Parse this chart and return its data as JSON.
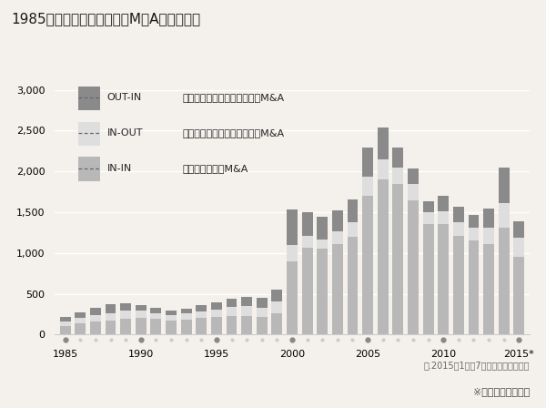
{
  "title": "1985年以降のマーケット別M＆A件数の推移",
  "years": [
    1985,
    1986,
    1987,
    1988,
    1989,
    1990,
    1991,
    1992,
    1993,
    1994,
    1995,
    1996,
    1997,
    1998,
    1999,
    2000,
    2001,
    2002,
    2003,
    2004,
    2005,
    2006,
    2007,
    2008,
    2009,
    2010,
    2011,
    2012,
    2013,
    2014,
    2015
  ],
  "IN_IN": [
    110,
    135,
    165,
    175,
    195,
    200,
    190,
    175,
    185,
    200,
    215,
    225,
    230,
    215,
    265,
    900,
    1060,
    1050,
    1110,
    1200,
    1700,
    1900,
    1850,
    1650,
    1350,
    1360,
    1210,
    1150,
    1110,
    1310,
    950
  ],
  "IN_OUT": [
    45,
    65,
    75,
    90,
    95,
    90,
    75,
    65,
    75,
    85,
    90,
    110,
    120,
    115,
    140,
    200,
    150,
    120,
    150,
    175,
    235,
    250,
    200,
    195,
    150,
    155,
    165,
    155,
    205,
    300,
    240
  ],
  "OUT_IN": [
    65,
    75,
    85,
    105,
    95,
    75,
    60,
    55,
    60,
    80,
    90,
    100,
    110,
    120,
    145,
    430,
    290,
    275,
    265,
    280,
    360,
    390,
    245,
    195,
    135,
    185,
    190,
    160,
    225,
    435,
    195
  ],
  "color_IN_IN": "#b8b8b8",
  "color_IN_OUT": "#dedede",
  "color_OUT_IN": "#8a8a8a",
  "background_color": "#f4f1ec",
  "ylim": [
    0,
    3000
  ],
  "yticks": [
    0,
    500,
    1000,
    1500,
    2000,
    2500,
    3000
  ],
  "note1": "＊.2015年1月〜7月の調査結果です。",
  "note2": "※出所：レコフ調べ",
  "legend_labels": [
    "OUT-IN",
    "IN-OUT",
    "IN-IN"
  ],
  "legend_descs": [
    "外国企業による日本企業へのM&A",
    "日本企業による外国企業へのM&A",
    "日本企業同士のM&A"
  ],
  "legend_colors": [
    "#8a8a8a",
    "#dedede",
    "#b8b8b8"
  ]
}
